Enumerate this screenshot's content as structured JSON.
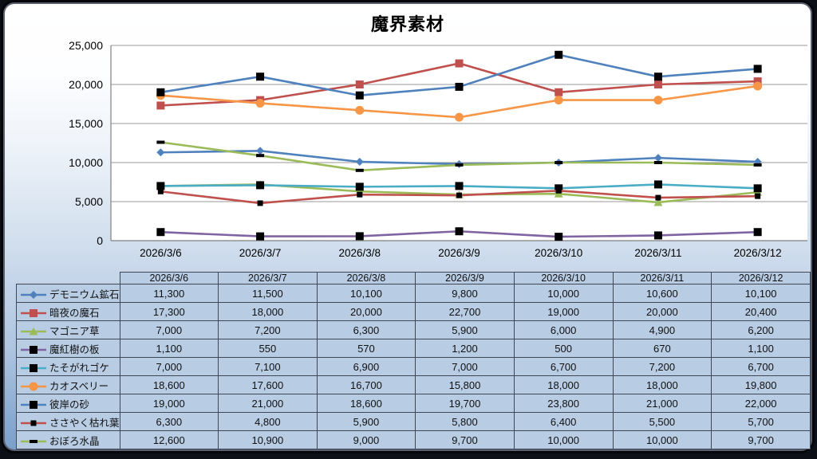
{
  "chart": {
    "title": "魔界素材"
  },
  "chart_data": {
    "type": "line",
    "title": "魔界素材",
    "categories": [
      "2026/3/6",
      "2026/3/7",
      "2026/3/8",
      "2026/3/9",
      "2026/3/10",
      "2026/3/11",
      "2026/3/12"
    ],
    "series": [
      {
        "name": "デモニウム鉱石",
        "color": "#4F81BD",
        "marker": "diamond",
        "marker_color": "#4F81BD",
        "values": [
          11300,
          11500,
          10100,
          9800,
          10000,
          10600,
          10100
        ]
      },
      {
        "name": "暗夜の魔石",
        "color": "#C0504D",
        "marker": "square",
        "marker_color": "#C0504D",
        "values": [
          17300,
          18000,
          20000,
          22700,
          19000,
          20000,
          20400
        ]
      },
      {
        "name": "マゴニア草",
        "color": "#9BBB59",
        "marker": "triangle",
        "marker_color": "#9BBB59",
        "values": [
          7000,
          7200,
          6300,
          5900,
          6000,
          4900,
          6200
        ]
      },
      {
        "name": "魔紅樹の板",
        "color": "#8064A2",
        "marker": "square",
        "marker_color": "#000000",
        "values": [
          1100,
          550,
          570,
          1200,
          500,
          670,
          1100
        ]
      },
      {
        "name": "たそがれゴケ",
        "color": "#4BACC6",
        "marker": "square",
        "marker_color": "#000000",
        "values": [
          7000,
          7100,
          6900,
          7000,
          6700,
          7200,
          6700
        ]
      },
      {
        "name": "カオスベリー",
        "color": "#F79646",
        "marker": "circle",
        "marker_color": "#F79646",
        "values": [
          18600,
          17600,
          16700,
          15800,
          18000,
          18000,
          19800
        ]
      },
      {
        "name": "彼岸の砂",
        "color": "#4F81BD",
        "marker": "square",
        "marker_color": "#000000",
        "values": [
          19000,
          21000,
          18600,
          19700,
          23800,
          21000,
          22000
        ]
      },
      {
        "name": "ささやく枯れ葉",
        "color": "#C0504D",
        "marker": "smallsquare",
        "marker_color": "#000000",
        "values": [
          6300,
          4800,
          5900,
          5800,
          6400,
          5500,
          5700
        ]
      },
      {
        "name": "おぼろ水晶",
        "color": "#9BBB59",
        "marker": "dash",
        "marker_color": "#000000",
        "values": [
          12600,
          10900,
          9000,
          9700,
          10000,
          10000,
          9700
        ]
      }
    ],
    "ylim": [
      0,
      25000
    ],
    "ytick_step": 5000,
    "grid": true,
    "gridline_color": "#9a9a9a",
    "axis_color": "#808080",
    "plot_bg": "#ffffff",
    "legend_position": "table-left-column"
  },
  "table": {
    "header": [
      "2026/3/6",
      "2026/3/7",
      "2026/3/8",
      "2026/3/9",
      "2026/3/10",
      "2026/3/11",
      "2026/3/12"
    ],
    "rows": [
      {
        "label": "デモニウム鉱石",
        "values": [
          "11,300",
          "11,500",
          "10,100",
          "9,800",
          "10,000",
          "10,600",
          "10,100"
        ]
      },
      {
        "label": "暗夜の魔石",
        "values": [
          "17,300",
          "18,000",
          "20,000",
          "22,700",
          "19,000",
          "20,000",
          "20,400"
        ]
      },
      {
        "label": "マゴニア草",
        "values": [
          "7,000",
          "7,200",
          "6,300",
          "5,900",
          "6,000",
          "4,900",
          "6,200"
        ]
      },
      {
        "label": "魔紅樹の板",
        "values": [
          "1,100",
          "550",
          "570",
          "1,200",
          "500",
          "670",
          "1,100"
        ]
      },
      {
        "label": "たそがれゴケ",
        "values": [
          "7,000",
          "7,100",
          "6,900",
          "7,000",
          "6,700",
          "7,200",
          "6,700"
        ]
      },
      {
        "label": "カオスベリー",
        "values": [
          "18,600",
          "17,600",
          "16,700",
          "15,800",
          "18,000",
          "18,000",
          "19,800"
        ]
      },
      {
        "label": "彼岸の砂",
        "values": [
          "19,000",
          "21,000",
          "18,600",
          "19,700",
          "23,800",
          "21,000",
          "22,000"
        ]
      },
      {
        "label": "ささやく枯れ葉",
        "values": [
          "6,300",
          "4,800",
          "5,900",
          "5,800",
          "6,400",
          "5,500",
          "5,700"
        ]
      },
      {
        "label": "おぼろ水晶",
        "values": [
          "12,600",
          "10,900",
          "9,000",
          "9,700",
          "10,000",
          "10,000",
          "9,700"
        ]
      }
    ]
  },
  "colors": {
    "panel_border": "#5a6070",
    "table_cell_bg": "#b8cce4",
    "table_border": "#3f4656",
    "background_bottom": "#7aa0ca"
  }
}
